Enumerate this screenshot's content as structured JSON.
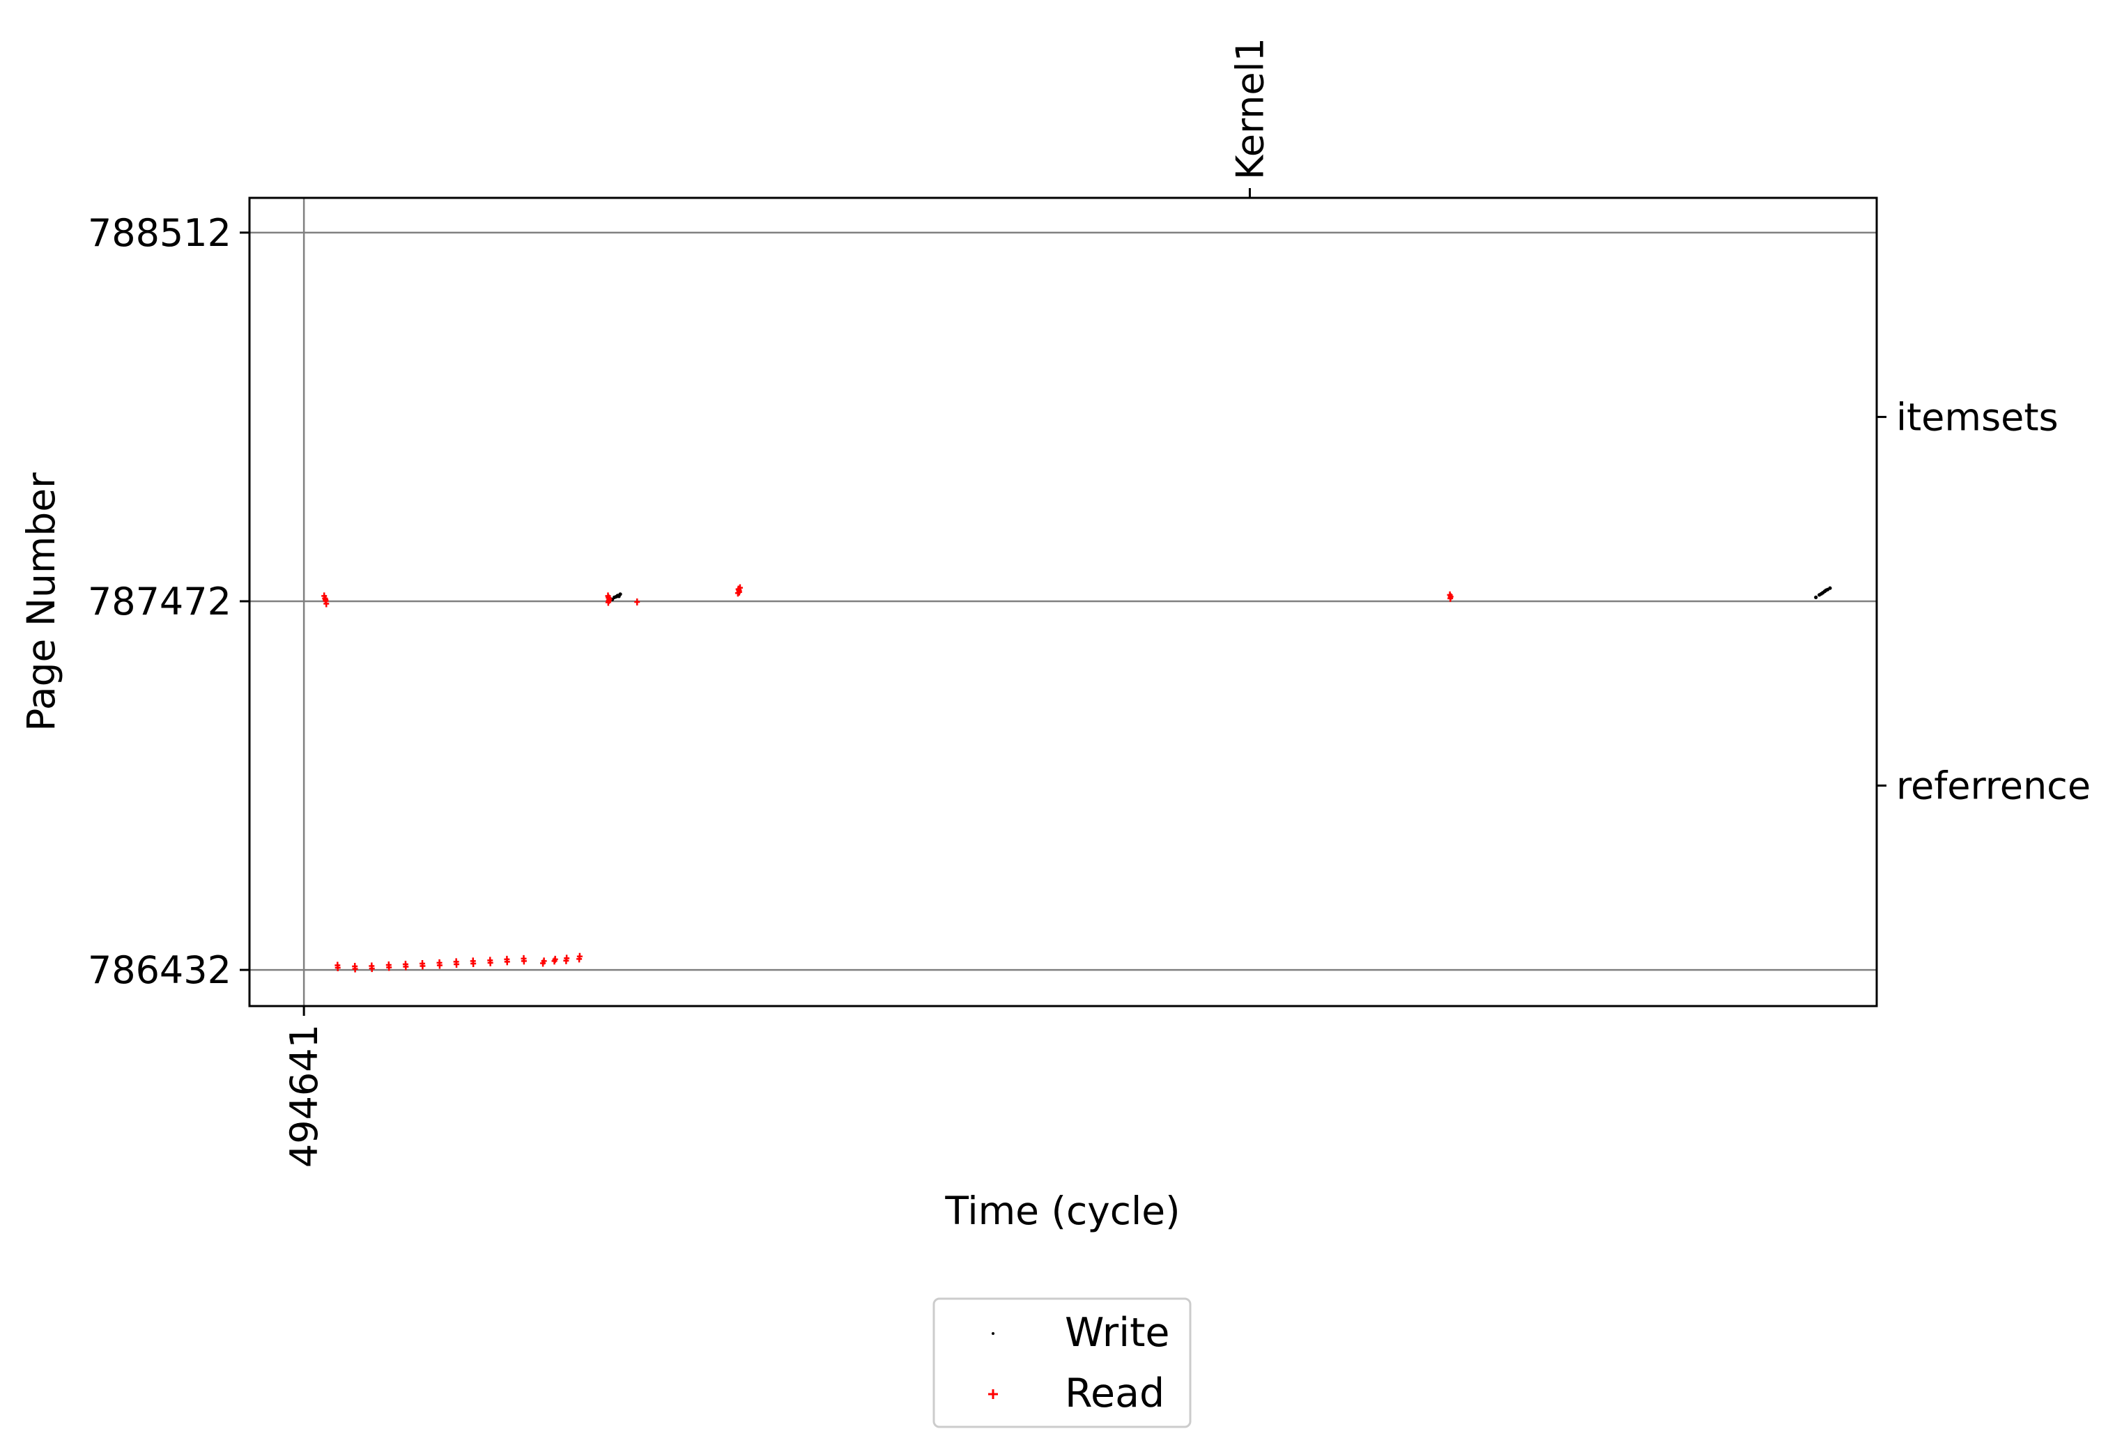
{
  "chart_data": {
    "type": "scatter",
    "title": "",
    "xlabel": "Time (cycle)",
    "ylabel": "Page Number",
    "x_ticks": [
      494641
    ],
    "x_tick_labels": [
      "494641"
    ],
    "y_ticks": [
      786432,
      787472,
      788512
    ],
    "y_tick_labels": [
      "786432",
      "787472",
      "788512"
    ],
    "right_ticks": [
      {
        "label": "itemsets",
        "y": 787992
      },
      {
        "label": "referrence",
        "y": 786952
      }
    ],
    "top_ticks": [
      {
        "label": "Kernel1",
        "x": 530100
      }
    ],
    "grid": true,
    "xlim": [
      492600,
      553600
    ],
    "ylim": [
      786330,
      788610
    ],
    "legend": {
      "position": "below",
      "entries": [
        {
          "label": "Write",
          "color": "#000000",
          "marker": "point"
        },
        {
          "label": "Read",
          "color": "#ff0000",
          "marker": "plus"
        }
      ]
    },
    "series": [
      {
        "name": "Write",
        "color": "#000000",
        "points": [
          [
            506050,
            787475
          ],
          [
            506150,
            787478
          ],
          [
            506280,
            787483
          ],
          [
            506400,
            787488
          ],
          [
            506200,
            787477
          ],
          [
            506350,
            787485
          ],
          [
            506500,
            787492
          ],
          [
            506450,
            787486
          ],
          [
            551320,
            787483
          ],
          [
            551450,
            787490
          ],
          [
            551580,
            787496
          ],
          [
            551700,
            787503
          ],
          [
            551520,
            787493
          ],
          [
            551650,
            787500
          ],
          [
            551760,
            787505
          ],
          [
            551850,
            787509
          ]
        ]
      },
      {
        "name": "Read",
        "color": "#ff0000",
        "points": [
          [
            495400,
            787487
          ],
          [
            495430,
            787480
          ],
          [
            495460,
            787473
          ],
          [
            495480,
            787465
          ],
          [
            495450,
            787477
          ],
          [
            495900,
            786445
          ],
          [
            495910,
            786438
          ],
          [
            496550,
            786442
          ],
          [
            496560,
            786435
          ],
          [
            497180,
            786443
          ],
          [
            497190,
            786436
          ],
          [
            497820,
            786446
          ],
          [
            497830,
            786439
          ],
          [
            498450,
            786448
          ],
          [
            498460,
            786441
          ],
          [
            499080,
            786450
          ],
          [
            499090,
            786443
          ],
          [
            499720,
            786452
          ],
          [
            499730,
            786445
          ],
          [
            500350,
            786455
          ],
          [
            500360,
            786448
          ],
          [
            500980,
            786457
          ],
          [
            500990,
            786450
          ],
          [
            501620,
            786459
          ],
          [
            501630,
            786452
          ],
          [
            502250,
            786462
          ],
          [
            502260,
            786455
          ],
          [
            502880,
            786464
          ],
          [
            502890,
            786457
          ],
          [
            503600,
            786451
          ],
          [
            503640,
            786457
          ],
          [
            504030,
            786457
          ],
          [
            504060,
            786462
          ],
          [
            504470,
            786458
          ],
          [
            504490,
            786465
          ],
          [
            504960,
            786463
          ],
          [
            504980,
            786470
          ],
          [
            506040,
            787487
          ],
          [
            506060,
            787482
          ],
          [
            506090,
            787478
          ],
          [
            506070,
            787474
          ],
          [
            506050,
            787469
          ],
          [
            507130,
            787470
          ],
          [
            510910,
            787495
          ],
          [
            510950,
            787503
          ],
          [
            510990,
            787510
          ],
          [
            510960,
            787498
          ],
          [
            510930,
            787506
          ],
          [
            537600,
            787490
          ],
          [
            537630,
            787485
          ],
          [
            537615,
            787480
          ]
        ]
      }
    ]
  }
}
